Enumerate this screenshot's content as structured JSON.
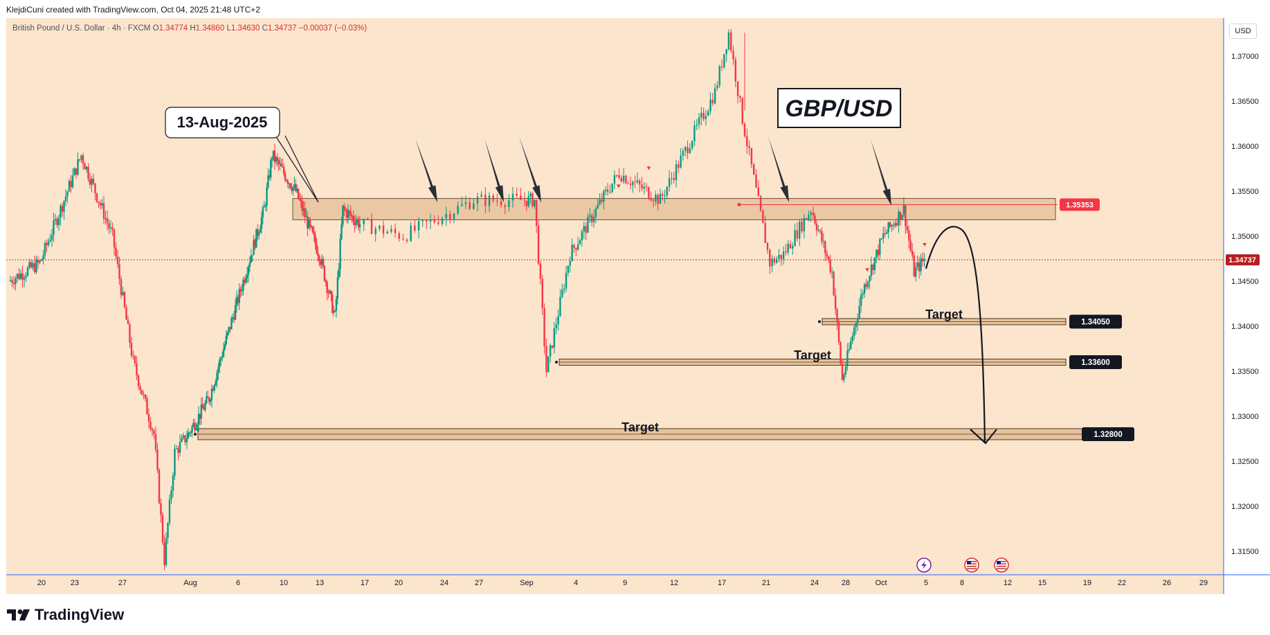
{
  "header": {
    "attribution": "KlejdiCuni created with TradingView.com, Oct 04, 2025 21:48 UTC+2"
  },
  "symbol_bar": {
    "name": "British Pound / U.S. Dollar · 4h · FXCM",
    "open_label": "O",
    "open": "1.34774",
    "high_label": "H",
    "high": "1.34860",
    "low_label": "L",
    "low": "1.34630",
    "close_label": "C",
    "close": "1.34737",
    "change": "−0.00037 (−0.03%)"
  },
  "currency_button": "USD",
  "brand": {
    "logo_text": "TradingView"
  },
  "annotations": {
    "date_callout": "13-Aug-2025",
    "title_box": "GBP/USD",
    "target_1": "Target",
    "target_2": "Target",
    "target_3": "Target"
  },
  "colors": {
    "background": "#fce5cd",
    "bull": "#089981",
    "bear": "#f23645",
    "zone_fill": "#e6c39c",
    "zone_stroke": "#6b4f32",
    "resistance_badge": "#f23645",
    "last_price_badge": "#b71c1c",
    "axis_line": "#2962ff"
  },
  "chart_data": {
    "type": "candlestick",
    "symbol": "GBP/USD",
    "timeframe": "4h",
    "y_axis": {
      "ylim": [
        1.3125,
        1.3725
      ],
      "ticks": [
        "1.37000",
        "1.36500",
        "1.36000",
        "1.35500",
        "1.35000",
        "1.34500",
        "1.34000",
        "1.33500",
        "1.33000",
        "1.32500",
        "1.32000",
        "1.31500"
      ]
    },
    "x_axis": {
      "tick_labels": [
        "20",
        "23",
        "27",
        "Aug",
        "6",
        "10",
        "13",
        "17",
        "20",
        "24",
        "27",
        "Sep",
        "4",
        "9",
        "12",
        "17",
        "21",
        "24",
        "28",
        "Oct",
        "5",
        "8",
        "12",
        "15",
        "19",
        "22",
        "26",
        "29"
      ]
    },
    "price_path": [
      [
        "Jul 17",
        1.345
      ],
      [
        "Jul 20",
        1.347
      ],
      [
        "Jul 23",
        1.356
      ],
      [
        "Jul 24",
        1.359
      ],
      [
        "Jul 27",
        1.35
      ],
      [
        "Jul 29",
        1.336
      ],
      [
        "Jul 31",
        1.328
      ],
      [
        "Aug 1",
        1.314
      ],
      [
        "Aug 2",
        1.326
      ],
      [
        "Aug 6",
        1.332
      ],
      [
        "Aug 10",
        1.344
      ],
      [
        "Aug 13",
        1.353
      ],
      [
        "Aug 14",
        1.359
      ],
      [
        "Aug 17",
        1.355
      ],
      [
        "Aug 20",
        1.348
      ],
      [
        "Aug 22",
        1.341
      ],
      [
        "Aug 23",
        1.353
      ],
      [
        "Aug 27",
        1.35
      ],
      [
        "Aug 30",
        1.354
      ],
      [
        "Sep 2",
        1.354
      ],
      [
        "Sep 3",
        1.335
      ],
      [
        "Sep 5",
        1.348
      ],
      [
        "Sep 9",
        1.357
      ],
      [
        "Sep 12",
        1.354
      ],
      [
        "Sep 16",
        1.366
      ],
      [
        "Sep 17",
        1.3726
      ],
      [
        "Sep 18",
        1.363
      ],
      [
        "Sep 20",
        1.347
      ],
      [
        "Sep 21",
        1.348
      ],
      [
        "Sep 23",
        1.353
      ],
      [
        "Sep 25",
        1.346
      ],
      [
        "Sep 26",
        1.334
      ],
      [
        "Sep 28",
        1.344
      ],
      [
        "Sep 30",
        1.35
      ],
      [
        "Oct 2",
        1.353
      ],
      [
        "Oct 3",
        1.346
      ],
      [
        "Oct 4",
        1.3474
      ]
    ],
    "resistance_zone": {
      "low": 1.3522,
      "high": 1.3538,
      "label": "1.35353"
    },
    "last_price": {
      "value": 1.34737,
      "label": "1.34737"
    },
    "targets": [
      {
        "value": 1.3405,
        "label": "1.34050",
        "name": "Target"
      },
      {
        "value": 1.336,
        "label": "1.33600",
        "name": "Target"
      },
      {
        "value": 1.328,
        "label": "1.32800",
        "name": "Target"
      }
    ],
    "resistance_arrows": [
      "Aug 23",
      "Aug 30",
      "Sep 2",
      "Sep 22",
      "Oct 1"
    ],
    "projection": {
      "from": 1.347,
      "peak": 1.3515,
      "to": 1.328
    },
    "event_icons": [
      "lightning-icon",
      "us-flag-icon",
      "us-flag-icon"
    ]
  }
}
